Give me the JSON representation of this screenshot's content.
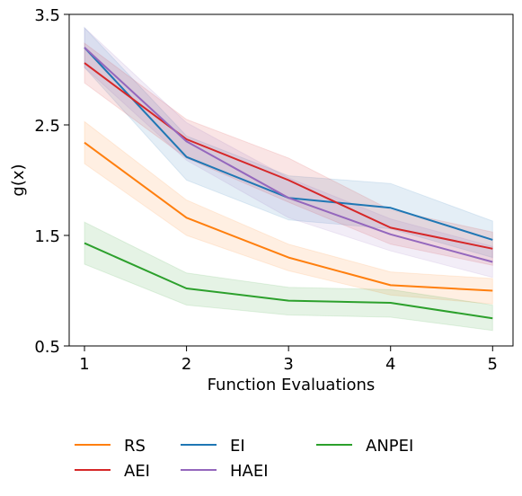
{
  "chart_data": {
    "type": "line",
    "xlabel": "Function Evaluations",
    "ylabel": "g(x)",
    "x": [
      1,
      2,
      3,
      4,
      5
    ],
    "xticks": [
      "1",
      "2",
      "3",
      "4",
      "5"
    ],
    "yticks": [
      "0.5",
      "1.5",
      "2.5",
      "3.5"
    ],
    "ytick_values": [
      0.5,
      1.5,
      2.5,
      3.5
    ],
    "xlim": [
      0.85,
      5.2
    ],
    "ylim": [
      0.5,
      3.5
    ],
    "grid": false,
    "legend_placement": "bottom",
    "series": [
      {
        "name": "RS",
        "color": "#ff7f0e",
        "values": [
          2.34,
          1.66,
          1.3,
          1.05,
          1.0
        ],
        "lower": [
          2.15,
          1.5,
          1.18,
          0.96,
          0.88
        ],
        "upper": [
          2.53,
          1.82,
          1.42,
          1.17,
          1.11
        ]
      },
      {
        "name": "EI",
        "color": "#1f77b4",
        "values": [
          3.2,
          2.21,
          1.84,
          1.75,
          1.46
        ],
        "lower": [
          3.02,
          2.0,
          1.64,
          1.56,
          1.3
        ],
        "upper": [
          3.38,
          2.4,
          2.04,
          1.97,
          1.63
        ]
      },
      {
        "name": "ANPEI",
        "color": "#2ca02c",
        "values": [
          1.43,
          1.02,
          0.91,
          0.89,
          0.75
        ],
        "lower": [
          1.24,
          0.87,
          0.78,
          0.76,
          0.64
        ],
        "upper": [
          1.62,
          1.16,
          1.03,
          1.01,
          0.87
        ]
      },
      {
        "name": "AEI",
        "color": "#d62728",
        "values": [
          3.06,
          2.37,
          2.0,
          1.57,
          1.38
        ],
        "lower": [
          2.88,
          2.2,
          1.8,
          1.42,
          1.23
        ],
        "upper": [
          3.24,
          2.55,
          2.2,
          1.73,
          1.53
        ]
      },
      {
        "name": "HAEI",
        "color": "#9467bd",
        "values": [
          3.2,
          2.35,
          1.84,
          1.51,
          1.26
        ],
        "lower": [
          3.02,
          2.18,
          1.66,
          1.36,
          1.12
        ],
        "upper": [
          3.38,
          2.52,
          2.02,
          1.65,
          1.4
        ]
      }
    ],
    "legend_order": [
      0,
      1,
      2,
      3,
      4
    ]
  }
}
